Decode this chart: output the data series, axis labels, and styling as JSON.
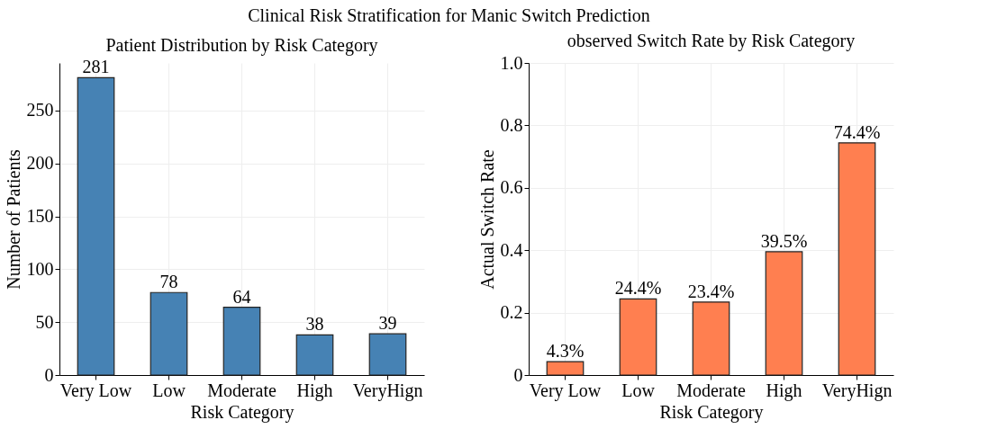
{
  "chart_data": [
    {
      "type": "bar",
      "title": "Patient Distribution by Risk Category",
      "xlabel": "Risk Category",
      "ylabel": "Number of  Patients",
      "annotations": [
        "Clinical Risk Stratification for Manic Switch Prediction"
      ],
      "categories": [
        "Very Low",
        "Low",
        "Moderate",
        "High",
        "VeryHign"
      ],
      "values": [
        281,
        78,
        64,
        38,
        39
      ],
      "color": "#4682b4",
      "ylim": [
        0,
        295
      ],
      "yticks": [
        0,
        50,
        100,
        150,
        200,
        250
      ],
      "grid": true,
      "data_labels": true
    },
    {
      "type": "bar",
      "title": "observed Switch Rate by Risk Category",
      "xlabel": "Risk Category",
      "ylabel": "Actual Switch Rate",
      "categories": [
        "Very Low",
        "Low",
        "Moderate",
        "High",
        "VeryHign"
      ],
      "values": [
        0.043,
        0.244,
        0.234,
        0.395,
        0.744
      ],
      "value_labels": [
        "4.3%",
        "24.4%",
        "23.4%",
        "39.5%",
        "74.4%"
      ],
      "color": "#ff7f50",
      "ylim": [
        0,
        1.0
      ],
      "yticks": [
        0,
        {
          "value": 0.2,
          "label": "0.2"
        },
        {
          "value": 0.4,
          "label": "0.4"
        },
        {
          "value": 0.6,
          "label": "0.6"
        },
        {
          "value": 0.8,
          "label": "0.8"
        },
        {
          "value": 1.0,
          "label": "1.0"
        }
      ],
      "grid": true
    }
  ]
}
